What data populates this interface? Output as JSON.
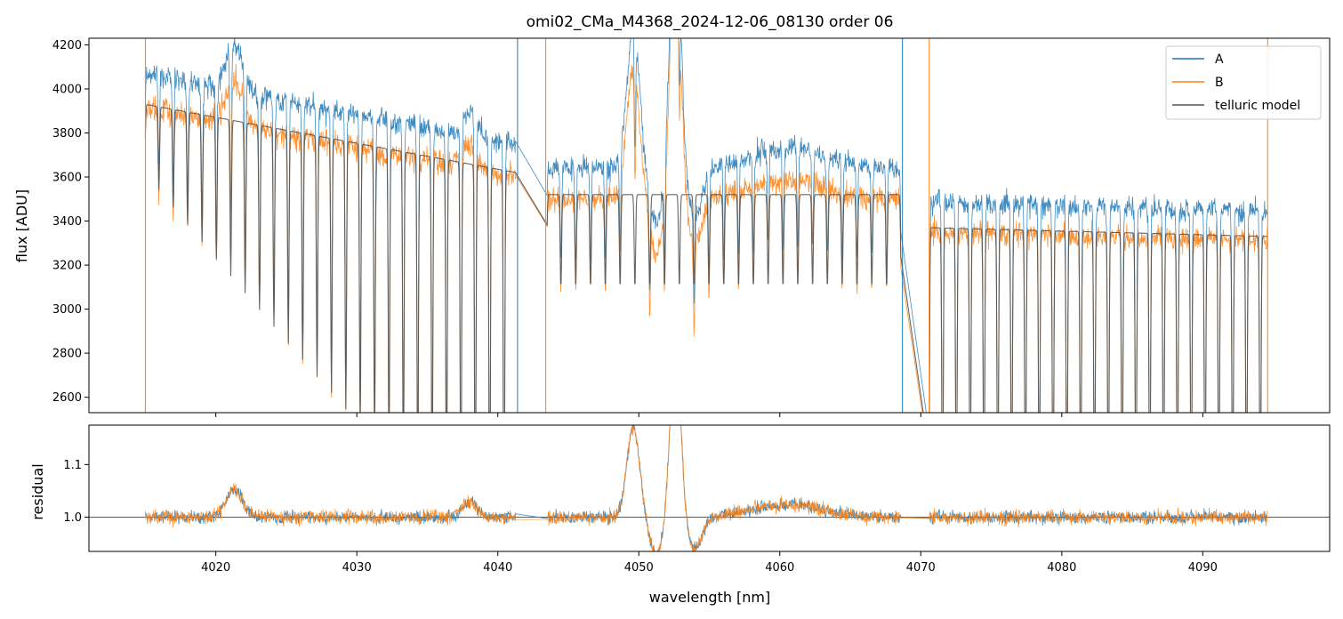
{
  "chart_data": {
    "type": "line",
    "title": "omi02_CMa_M4368_2024-12-06_08130  order 06",
    "xlabel": "wavelength [nm]",
    "xlim": [
      4011,
      4099
    ],
    "x_ticks": [
      4020,
      4030,
      4040,
      4050,
      4060,
      4070,
      4080,
      4090
    ],
    "top_panel": {
      "ylabel": "flux [ADU]",
      "ylim": [
        2530,
        4230
      ],
      "y_ticks": [
        2600,
        2800,
        3000,
        3200,
        3400,
        3600,
        3800,
        4000,
        4200
      ],
      "legend_position": "top-right",
      "series": [
        {
          "name": "A",
          "color": "#1f77b4"
        },
        {
          "name": "B",
          "color": "#ff7f0e"
        },
        {
          "name": "telluric model",
          "color": "#555555"
        }
      ],
      "segments": [
        {
          "x0": 4015.0,
          "x1": 4041.3,
          "continuum_model": [
            3930,
            3620
          ]
        },
        {
          "x0": 4043.5,
          "x1": 4068.6,
          "continuum_model": [
            3520,
            3520
          ]
        },
        {
          "x0": 4070.6,
          "x1": 4094.6,
          "continuum_model": [
            3370,
            3330
          ]
        }
      ],
      "scale_A": 1.035,
      "scale_B": 0.995
    },
    "bottom_panel": {
      "ylabel": "residual",
      "ylim": [
        0.935,
        1.175
      ],
      "y_ticks": [
        1.0,
        1.1
      ],
      "reference_line": 1.0
    }
  }
}
